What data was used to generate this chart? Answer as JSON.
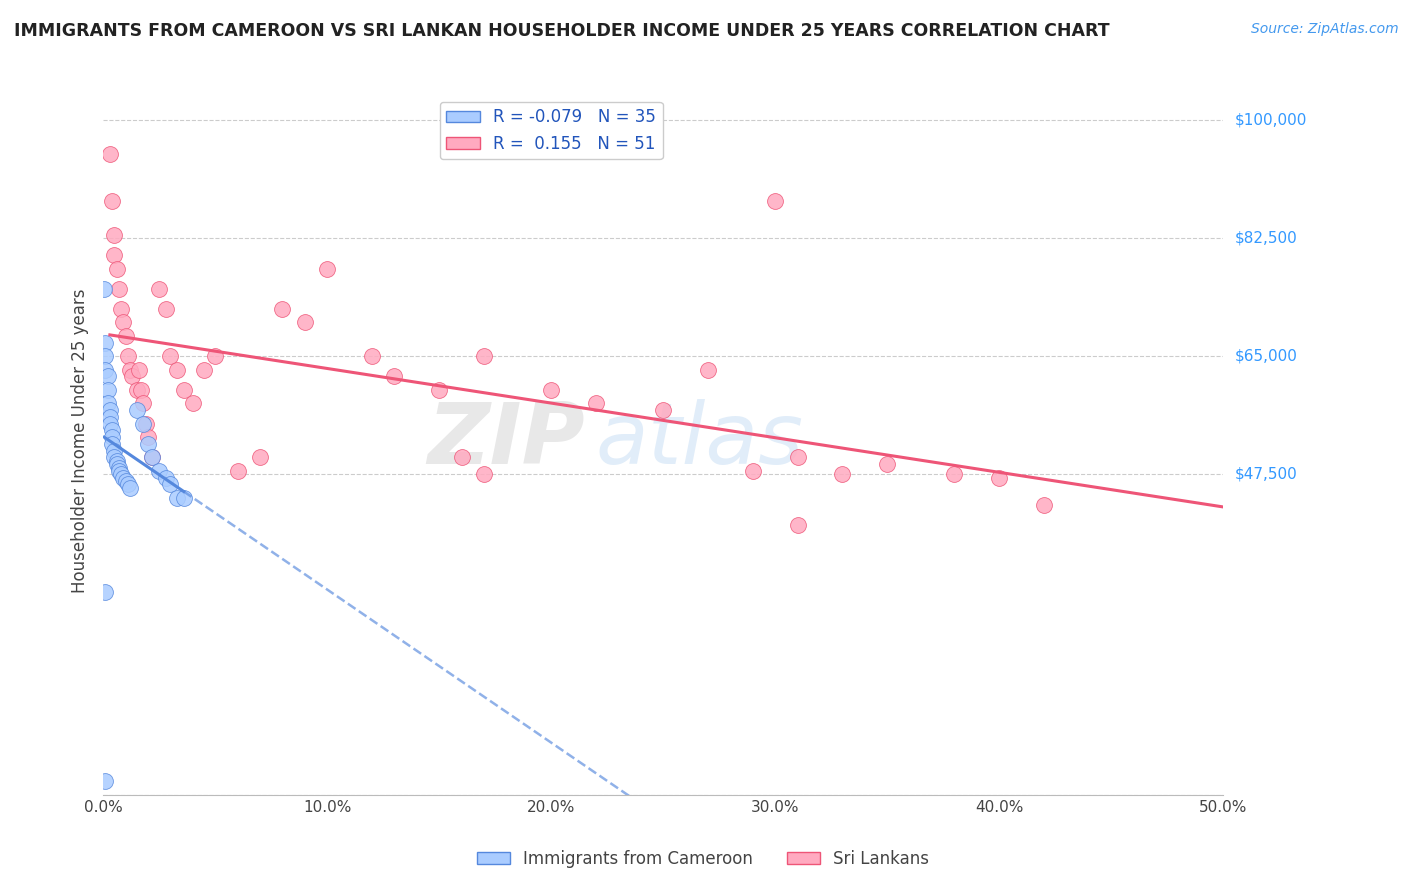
{
  "title": "IMMIGRANTS FROM CAMEROON VS SRI LANKAN HOUSEHOLDER INCOME UNDER 25 YEARS CORRELATION CHART",
  "source": "Source: ZipAtlas.com",
  "ylabel": "Householder Income Under 25 years",
  "xlim": [
    0.0,
    0.5
  ],
  "ylim": [
    0,
    105000
  ],
  "yticks": [
    0,
    47500,
    65000,
    82500,
    100000
  ],
  "ytick_labels": [
    "",
    "$47,500",
    "$65,000",
    "$82,500",
    "$100,000"
  ],
  "xticks": [
    0.0,
    0.1,
    0.2,
    0.3,
    0.4,
    0.5
  ],
  "xtick_labels": [
    "0.0%",
    "10.0%",
    "20.0%",
    "30.0%",
    "40.0%",
    "50.0%"
  ],
  "cameroon_R": -0.079,
  "cameroon_N": 35,
  "srilankan_R": 0.155,
  "srilankan_N": 51,
  "cameroon_color": "#aaccff",
  "srilankan_color": "#ffaac0",
  "cameroon_line_color": "#5588dd",
  "srilankan_line_color": "#ee5577",
  "background_color": "#ffffff",
  "grid_color": "#cccccc",
  "watermark_zip": "ZIP",
  "watermark_atlas": "atlas",
  "cameroon_x": [
    0.0005,
    0.001,
    0.001,
    0.001,
    0.002,
    0.002,
    0.002,
    0.003,
    0.003,
    0.003,
    0.004,
    0.004,
    0.004,
    0.005,
    0.005,
    0.006,
    0.006,
    0.007,
    0.007,
    0.008,
    0.009,
    0.01,
    0.011,
    0.012,
    0.015,
    0.018,
    0.02,
    0.022,
    0.025,
    0.028,
    0.03,
    0.033,
    0.036,
    0.001,
    0.001
  ],
  "cameroon_y": [
    75000,
    67000,
    65000,
    63000,
    62000,
    60000,
    58000,
    57000,
    56000,
    55000,
    54000,
    53000,
    52000,
    51000,
    50000,
    49500,
    49000,
    48500,
    48000,
    47500,
    47000,
    46500,
    46000,
    45500,
    57000,
    55000,
    52000,
    50000,
    48000,
    47000,
    46000,
    44000,
    44000,
    30000,
    2000
  ],
  "srilankan_x": [
    0.003,
    0.004,
    0.005,
    0.005,
    0.006,
    0.007,
    0.008,
    0.009,
    0.01,
    0.011,
    0.012,
    0.013,
    0.015,
    0.016,
    0.017,
    0.018,
    0.019,
    0.02,
    0.022,
    0.025,
    0.028,
    0.03,
    0.033,
    0.036,
    0.04,
    0.045,
    0.05,
    0.06,
    0.07,
    0.08,
    0.09,
    0.1,
    0.12,
    0.13,
    0.15,
    0.17,
    0.2,
    0.22,
    0.25,
    0.27,
    0.29,
    0.31,
    0.33,
    0.35,
    0.38,
    0.4,
    0.42,
    0.3,
    0.31,
    0.17,
    0.16
  ],
  "srilankan_y": [
    95000,
    88000,
    83000,
    80000,
    78000,
    75000,
    72000,
    70000,
    68000,
    65000,
    63000,
    62000,
    60000,
    63000,
    60000,
    58000,
    55000,
    53000,
    50000,
    75000,
    72000,
    65000,
    63000,
    60000,
    58000,
    63000,
    65000,
    48000,
    50000,
    72000,
    70000,
    78000,
    65000,
    62000,
    60000,
    65000,
    60000,
    58000,
    57000,
    63000,
    48000,
    50000,
    47500,
    49000,
    47500,
    47000,
    43000,
    88000,
    40000,
    47500,
    50000
  ]
}
